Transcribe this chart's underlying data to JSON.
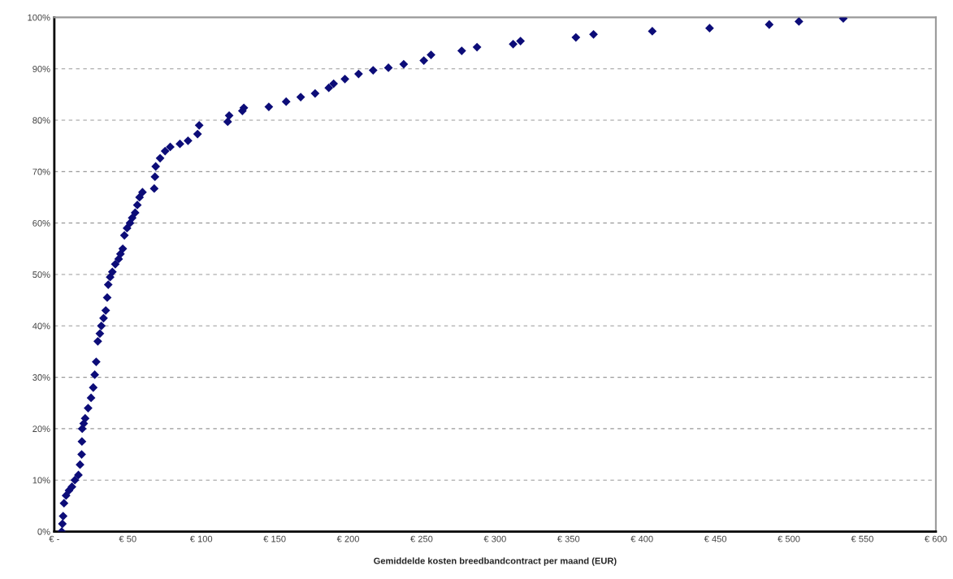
{
  "chart_data": {
    "type": "scatter",
    "xlabel": "Gemiddelde kosten breedbandcontract per maand (EUR)",
    "x": [
      5,
      5.5,
      6,
      6.6,
      8,
      10,
      12,
      14,
      16.4,
      17.5,
      18.6,
      18.8,
      19,
      20,
      21,
      23,
      25,
      26.5,
      27.5,
      28.5,
      29.6,
      31,
      32,
      33.5,
      35,
      36,
      36.7,
      38,
      39.5,
      41.5,
      43.8,
      45,
      46.6,
      47.7,
      49.5,
      51.5,
      53,
      55,
      56.5,
      58,
      60,
      68,
      68.5,
      69,
      72,
      75.4,
      78.9,
      85.5,
      91,
      97.5,
      98.6,
      118,
      119,
      128,
      129,
      146,
      157.8,
      167.7,
      177.5,
      186.8,
      190.1,
      197.8,
      207.1,
      217,
      227.4,
      237.8,
      251.5,
      256.4,
      277.3,
      287.7,
      312.3,
      317.3,
      355,
      367,
      407,
      446,
      486.6,
      506.8,
      537
    ],
    "values": [
      0,
      1.5,
      3,
      5.5,
      7,
      8,
      8.7,
      10,
      11,
      13,
      15,
      17.5,
      20,
      21,
      22,
      24,
      26,
      28,
      30.5,
      33,
      37,
      38.5,
      40,
      41.5,
      43,
      45.5,
      48,
      49.5,
      50.5,
      52,
      53,
      54,
      55,
      57.6,
      59,
      60,
      61,
      62,
      63.5,
      65,
      66,
      66.7,
      69,
      71,
      72.6,
      74,
      74.8,
      75.4,
      76,
      77.3,
      79,
      79.7,
      80.9,
      81.8,
      82.4,
      82.6,
      83.6,
      84.5,
      85.2,
      86.3,
      87.1,
      88,
      89,
      89.7,
      90.2,
      90.9,
      91.6,
      92.7,
      93.5,
      94.2,
      94.8,
      95.4,
      96.1,
      96.7,
      97.3,
      97.9,
      98.6,
      99.2,
      99.8
    ],
    "color": "#0c0c78",
    "marker": "diamond",
    "xlim": [
      0,
      600
    ],
    "xticks": [
      {
        "value": 0,
        "label": "€ -"
      },
      {
        "value": 50,
        "label": "€ 50"
      },
      {
        "value": 100,
        "label": "€ 100"
      },
      {
        "value": 150,
        "label": "€ 150"
      },
      {
        "value": 200,
        "label": "€ 200"
      },
      {
        "value": 250,
        "label": "€ 250"
      },
      {
        "value": 300,
        "label": "€ 300"
      },
      {
        "value": 350,
        "label": "€ 350"
      },
      {
        "value": 400,
        "label": "€ 400"
      },
      {
        "value": 450,
        "label": "€ 450"
      },
      {
        "value": 500,
        "label": "€ 500"
      },
      {
        "value": 550,
        "label": "€ 550"
      },
      {
        "value": 600,
        "label": "€ 600"
      }
    ],
    "ylim": [
      0,
      100
    ],
    "yticks": [
      {
        "value": 0,
        "label": "0%"
      },
      {
        "value": 10,
        "label": "10%"
      },
      {
        "value": 20,
        "label": "20%"
      },
      {
        "value": 30,
        "label": "30%"
      },
      {
        "value": 40,
        "label": "40%"
      },
      {
        "value": 50,
        "label": "50%"
      },
      {
        "value": 60,
        "label": "60%"
      },
      {
        "value": 70,
        "label": "70%"
      },
      {
        "value": 80,
        "label": "80%"
      },
      {
        "value": 90,
        "label": "90%"
      },
      {
        "value": 100,
        "label": "100%"
      }
    ],
    "grid": "y",
    "legend": false
  }
}
